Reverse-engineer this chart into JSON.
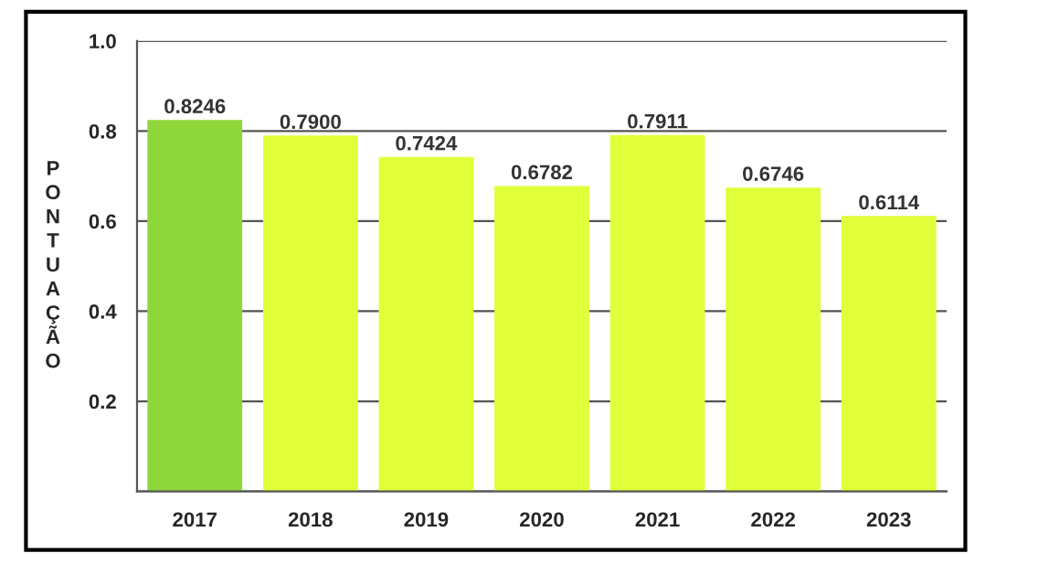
{
  "chart_data": {
    "type": "bar",
    "ylabel": "PONTUAÇÃO",
    "categories": [
      "2017",
      "2018",
      "2019",
      "2020",
      "2021",
      "2022",
      "2023"
    ],
    "values": [
      0.8246,
      0.79,
      0.7424,
      0.6782,
      0.7911,
      0.6746,
      0.6114
    ],
    "colors": [
      "#8fd63a",
      "#e1ff3a",
      "#e1ff3a",
      "#e1ff3a",
      "#e1ff3a",
      "#e1ff3a",
      "#e1ff3a"
    ],
    "value_labels": [
      "0.8246",
      "0.7900",
      "0.7424",
      "0.6782",
      "0.7911",
      "0.6746",
      "0.6114"
    ],
    "ylim": [
      0,
      1.0
    ],
    "yticks": [
      {
        "value": 0,
        "label": null
      },
      0.2,
      0.4,
      0.6,
      0.8,
      {
        "value": 1.0,
        "label": "1.0"
      }
    ],
    "grid": "y",
    "legend": false
  }
}
